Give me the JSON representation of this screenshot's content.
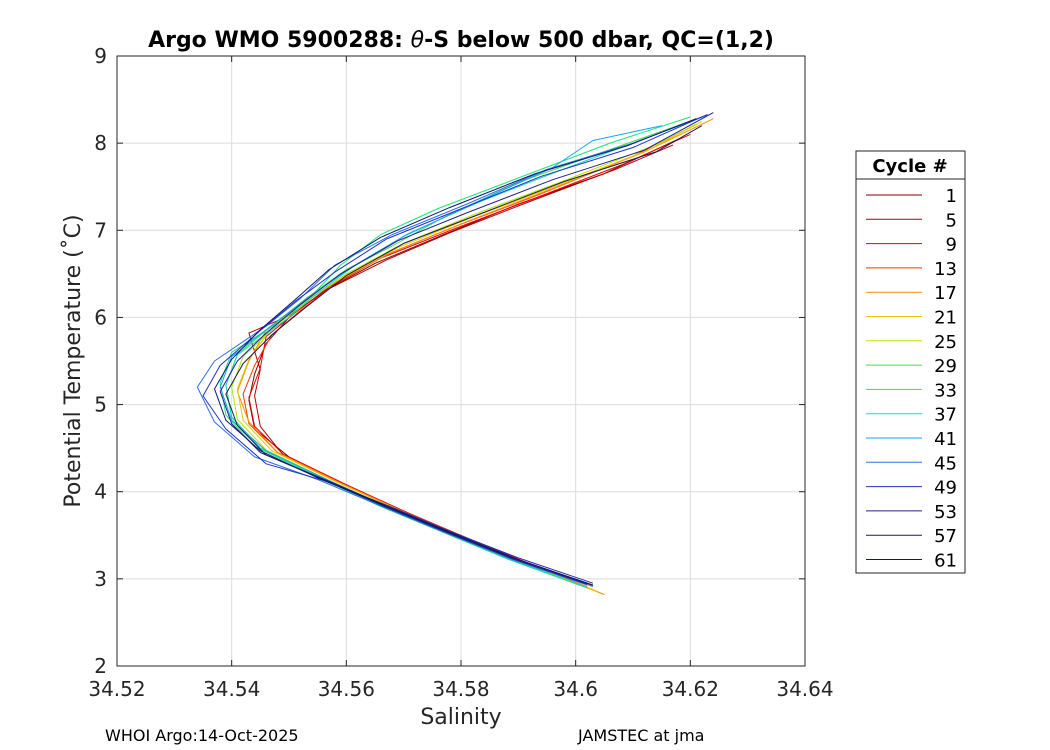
{
  "chart_data": {
    "type": "line",
    "title_prefix": "Argo WMO 5900288: ",
    "title_theta": "θ",
    "title_suffix": "-S below 500 dbar,  QC=(1,2)",
    "xlabel": "Salinity",
    "ylabel": "Potential Temperature (˚C)",
    "xlim": [
      34.52,
      34.64
    ],
    "ylim": [
      2,
      9
    ],
    "xticks": [
      34.52,
      34.54,
      34.56,
      34.58,
      34.6,
      34.62,
      34.64
    ],
    "xtick_labels": [
      "34.52",
      "34.54",
      "34.56",
      "34.58",
      "34.6",
      "34.62",
      "34.64"
    ],
    "yticks": [
      2,
      3,
      4,
      5,
      6,
      7,
      8,
      9
    ],
    "ytick_labels": [
      "2",
      "3",
      "4",
      "5",
      "6",
      "7",
      "8",
      "9"
    ],
    "grid": true,
    "legend_title": "Cycle #",
    "legend_position": "outside-right",
    "series": [
      {
        "name": "1",
        "color": "#800000",
        "points": [
          [
            34.601,
            2.92
          ],
          [
            34.59,
            3.19
          ],
          [
            34.58,
            3.47
          ],
          [
            34.57,
            3.78
          ],
          [
            34.56,
            4.07
          ],
          [
            34.55,
            4.4
          ],
          [
            34.544,
            4.72
          ],
          [
            34.543,
            5.05
          ],
          [
            34.544,
            5.35
          ],
          [
            34.546,
            5.7
          ],
          [
            34.55,
            6.0
          ],
          [
            34.556,
            6.3
          ],
          [
            34.565,
            6.62
          ],
          [
            34.577,
            6.95
          ],
          [
            34.59,
            7.3
          ],
          [
            34.605,
            7.65
          ],
          [
            34.618,
            8.05
          ]
        ]
      },
      {
        "name": "5",
        "color": "#b30000",
        "points": [
          [
            34.602,
            2.9
          ],
          [
            34.59,
            3.2
          ],
          [
            34.58,
            3.48
          ],
          [
            34.57,
            3.77
          ],
          [
            34.56,
            4.08
          ],
          [
            34.549,
            4.42
          ],
          [
            34.545,
            4.75
          ],
          [
            34.544,
            5.1
          ],
          [
            34.545,
            5.4
          ],
          [
            34.543,
            5.82
          ],
          [
            34.55,
            6.02
          ],
          [
            34.557,
            6.33
          ],
          [
            34.567,
            6.66
          ],
          [
            34.578,
            6.97
          ],
          [
            34.592,
            7.33
          ],
          [
            34.607,
            7.7
          ],
          [
            34.617,
            7.98
          ]
        ]
      },
      {
        "name": "9",
        "color": "#e60000",
        "points": [
          [
            34.603,
            2.92
          ],
          [
            34.591,
            3.2
          ],
          [
            34.581,
            3.47
          ],
          [
            34.57,
            3.78
          ],
          [
            34.56,
            4.08
          ],
          [
            34.549,
            4.43
          ],
          [
            34.544,
            4.75
          ],
          [
            34.543,
            5.08
          ],
          [
            34.545,
            5.42
          ],
          [
            34.546,
            5.78
          ],
          [
            34.551,
            6.05
          ],
          [
            34.557,
            6.35
          ],
          [
            34.566,
            6.68
          ],
          [
            34.579,
            7.02
          ],
          [
            34.593,
            7.37
          ],
          [
            34.608,
            7.75
          ],
          [
            34.62,
            8.1
          ]
        ]
      },
      {
        "name": "13",
        "color": "#ff3300",
        "points": [
          [
            34.602,
            2.91
          ],
          [
            34.59,
            3.21
          ],
          [
            34.58,
            3.5
          ],
          [
            34.569,
            3.8
          ],
          [
            34.559,
            4.1
          ],
          [
            34.548,
            4.45
          ],
          [
            34.543,
            4.78
          ],
          [
            34.542,
            5.12
          ],
          [
            34.544,
            5.45
          ],
          [
            34.547,
            5.8
          ],
          [
            34.552,
            6.08
          ],
          [
            34.558,
            6.38
          ],
          [
            34.567,
            6.72
          ],
          [
            34.58,
            7.07
          ],
          [
            34.594,
            7.42
          ],
          [
            34.61,
            7.85
          ],
          [
            34.62,
            8.18
          ]
        ]
      },
      {
        "name": "17",
        "color": "#ff8c00",
        "points": [
          [
            34.605,
            2.82
          ],
          [
            34.592,
            3.15
          ],
          [
            34.581,
            3.45
          ],
          [
            34.57,
            3.77
          ],
          [
            34.559,
            4.1
          ],
          [
            34.548,
            4.45
          ],
          [
            34.543,
            4.8
          ],
          [
            34.541,
            5.15
          ],
          [
            34.543,
            5.5
          ],
          [
            34.546,
            5.85
          ],
          [
            34.551,
            6.1
          ],
          [
            34.558,
            6.4
          ],
          [
            34.568,
            6.75
          ],
          [
            34.581,
            7.1
          ],
          [
            34.596,
            7.48
          ],
          [
            34.612,
            7.9
          ],
          [
            34.624,
            8.28
          ]
        ]
      },
      {
        "name": "21",
        "color": "#e6c800",
        "points": [
          [
            34.604,
            2.85
          ],
          [
            34.591,
            3.18
          ],
          [
            34.58,
            3.48
          ],
          [
            34.569,
            3.79
          ],
          [
            34.558,
            4.12
          ],
          [
            34.547,
            4.47
          ],
          [
            34.542,
            4.82
          ],
          [
            34.541,
            5.18
          ],
          [
            34.543,
            5.52
          ],
          [
            34.547,
            5.88
          ],
          [
            34.552,
            6.15
          ],
          [
            34.559,
            6.45
          ],
          [
            34.569,
            6.8
          ],
          [
            34.582,
            7.15
          ],
          [
            34.597,
            7.52
          ],
          [
            34.613,
            7.93
          ],
          [
            34.622,
            8.25
          ]
        ]
      },
      {
        "name": "25",
        "color": "#b4e600",
        "points": [
          [
            34.603,
            2.88
          ],
          [
            34.59,
            3.2
          ],
          [
            34.579,
            3.5
          ],
          [
            34.568,
            3.8
          ],
          [
            34.557,
            4.13
          ],
          [
            34.546,
            4.48
          ],
          [
            34.541,
            4.83
          ],
          [
            34.54,
            5.2
          ],
          [
            34.542,
            5.55
          ],
          [
            34.548,
            5.92
          ],
          [
            34.553,
            6.18
          ],
          [
            34.56,
            6.5
          ],
          [
            34.57,
            6.85
          ],
          [
            34.583,
            7.2
          ],
          [
            34.598,
            7.57
          ],
          [
            34.614,
            7.98
          ],
          [
            34.621,
            8.22
          ]
        ]
      },
      {
        "name": "29",
        "color": "#4cd94c",
        "points": [
          [
            34.602,
            2.9
          ],
          [
            34.589,
            3.22
          ],
          [
            34.578,
            3.52
          ],
          [
            34.567,
            3.82
          ],
          [
            34.556,
            4.15
          ],
          [
            34.545,
            4.5
          ],
          [
            34.54,
            4.85
          ],
          [
            34.539,
            5.22
          ],
          [
            34.541,
            5.58
          ],
          [
            34.548,
            5.95
          ],
          [
            34.553,
            6.22
          ],
          [
            34.56,
            6.55
          ],
          [
            34.568,
            6.82
          ],
          [
            34.577,
            7.15
          ],
          [
            34.59,
            7.55
          ],
          [
            34.607,
            7.95
          ],
          [
            34.622,
            8.3
          ]
        ]
      },
      {
        "name": "33",
        "color": "#1ae678",
        "points": [
          [
            34.601,
            2.92
          ],
          [
            34.588,
            3.23
          ],
          [
            34.577,
            3.53
          ],
          [
            34.566,
            3.83
          ],
          [
            34.555,
            4.17
          ],
          [
            34.544,
            4.52
          ],
          [
            34.539,
            4.88
          ],
          [
            34.538,
            5.25
          ],
          [
            34.54,
            5.6
          ],
          [
            34.549,
            5.98
          ],
          [
            34.554,
            6.25
          ],
          [
            34.559,
            6.6
          ],
          [
            34.566,
            6.95
          ],
          [
            34.576,
            7.25
          ],
          [
            34.59,
            7.6
          ],
          [
            34.606,
            8.0
          ],
          [
            34.62,
            8.3
          ]
        ]
      },
      {
        "name": "37",
        "color": "#19d9c0",
        "points": [
          [
            34.602,
            2.9
          ],
          [
            34.589,
            3.21
          ],
          [
            34.578,
            3.51
          ],
          [
            34.567,
            3.81
          ],
          [
            34.556,
            4.15
          ],
          [
            34.545,
            4.5
          ],
          [
            34.54,
            4.86
          ],
          [
            34.539,
            5.22
          ],
          [
            34.541,
            5.57
          ],
          [
            34.55,
            6.0
          ],
          [
            34.555,
            6.28
          ],
          [
            34.562,
            6.62
          ],
          [
            34.571,
            6.97
          ],
          [
            34.583,
            7.32
          ],
          [
            34.597,
            7.68
          ],
          [
            34.612,
            8.05
          ],
          [
            34.623,
            8.32
          ]
        ]
      },
      {
        "name": "41",
        "color": "#1aa3f0",
        "points": [
          [
            34.603,
            2.91
          ],
          [
            34.59,
            3.2
          ],
          [
            34.579,
            3.5
          ],
          [
            34.568,
            3.8
          ],
          [
            34.557,
            4.13
          ],
          [
            34.546,
            4.47
          ],
          [
            34.54,
            4.82
          ],
          [
            34.538,
            5.2
          ],
          [
            34.54,
            5.55
          ],
          [
            34.548,
            5.96
          ],
          [
            34.554,
            6.26
          ],
          [
            34.561,
            6.58
          ],
          [
            34.57,
            6.93
          ],
          [
            34.582,
            7.3
          ],
          [
            34.596,
            7.72
          ],
          [
            34.603,
            8.03
          ],
          [
            34.615,
            8.2
          ]
        ]
      },
      {
        "name": "45",
        "color": "#2b6fe8",
        "points": [
          [
            34.602,
            2.93
          ],
          [
            34.589,
            3.22
          ],
          [
            34.578,
            3.51
          ],
          [
            34.567,
            3.81
          ],
          [
            34.555,
            4.14
          ],
          [
            34.544,
            4.4
          ],
          [
            34.537,
            4.8
          ],
          [
            34.534,
            5.2
          ],
          [
            34.537,
            5.5
          ],
          [
            34.546,
            5.9
          ],
          [
            34.552,
            6.22
          ],
          [
            34.558,
            6.6
          ],
          [
            34.568,
            6.95
          ],
          [
            34.581,
            7.3
          ],
          [
            34.595,
            7.7
          ],
          [
            34.61,
            8.0
          ],
          [
            34.622,
            8.3
          ]
        ]
      },
      {
        "name": "49",
        "color": "#1f2fc8",
        "points": [
          [
            34.603,
            2.95
          ],
          [
            34.59,
            3.24
          ],
          [
            34.579,
            3.52
          ],
          [
            34.568,
            3.82
          ],
          [
            34.556,
            4.13
          ],
          [
            34.546,
            4.32
          ],
          [
            34.539,
            4.72
          ],
          [
            34.535,
            5.1
          ],
          [
            34.538,
            5.45
          ],
          [
            34.545,
            5.85
          ],
          [
            34.551,
            6.18
          ],
          [
            34.558,
            6.52
          ],
          [
            34.567,
            6.9
          ],
          [
            34.579,
            7.22
          ],
          [
            34.594,
            7.62
          ],
          [
            34.61,
            7.95
          ],
          [
            34.623,
            8.33
          ]
        ]
      },
      {
        "name": "53",
        "color": "#24208c",
        "points": [
          [
            34.602,
            2.94
          ],
          [
            34.589,
            3.23
          ],
          [
            34.578,
            3.52
          ],
          [
            34.567,
            3.82
          ],
          [
            34.556,
            4.14
          ],
          [
            34.545,
            4.45
          ],
          [
            34.54,
            4.78
          ],
          [
            34.538,
            5.15
          ],
          [
            34.541,
            5.5
          ],
          [
            34.546,
            5.82
          ],
          [
            34.552,
            6.15
          ],
          [
            34.559,
            6.5
          ],
          [
            34.569,
            6.88
          ],
          [
            34.581,
            7.2
          ],
          [
            34.596,
            7.58
          ],
          [
            34.612,
            7.92
          ],
          [
            34.624,
            8.35
          ]
        ]
      },
      {
        "name": "57",
        "color": "#1a1a52",
        "points": [
          [
            34.603,
            2.93
          ],
          [
            34.59,
            3.22
          ],
          [
            34.579,
            3.51
          ],
          [
            34.568,
            3.81
          ],
          [
            34.557,
            4.12
          ],
          [
            34.546,
            4.42
          ],
          [
            34.541,
            4.76
          ],
          [
            34.539,
            5.12
          ],
          [
            34.542,
            5.47
          ],
          [
            34.547,
            5.8
          ],
          [
            34.553,
            6.12
          ],
          [
            34.56,
            6.48
          ],
          [
            34.57,
            6.85
          ],
          [
            34.583,
            7.18
          ],
          [
            34.598,
            7.56
          ],
          [
            34.614,
            7.9
          ],
          [
            34.622,
            8.2
          ]
        ]
      },
      {
        "name": "61",
        "color": "#0a1a6e",
        "points": [
          [
            34.602,
            2.95
          ],
          [
            34.589,
            3.24
          ],
          [
            34.578,
            3.53
          ],
          [
            34.567,
            3.83
          ],
          [
            34.555,
            4.16
          ],
          [
            34.545,
            4.47
          ],
          [
            34.539,
            4.82
          ],
          [
            34.537,
            5.18
          ],
          [
            34.54,
            5.52
          ],
          [
            34.545,
            5.86
          ],
          [
            34.551,
            6.2
          ],
          [
            34.557,
            6.55
          ],
          [
            34.566,
            6.92
          ],
          [
            34.578,
            7.26
          ],
          [
            34.593,
            7.65
          ],
          [
            34.609,
            7.97
          ],
          [
            34.621,
            8.28
          ]
        ]
      }
    ]
  },
  "footer": {
    "left": "WHOI Argo:14-Oct-2025",
    "right": "JAMSTEC at jma"
  }
}
